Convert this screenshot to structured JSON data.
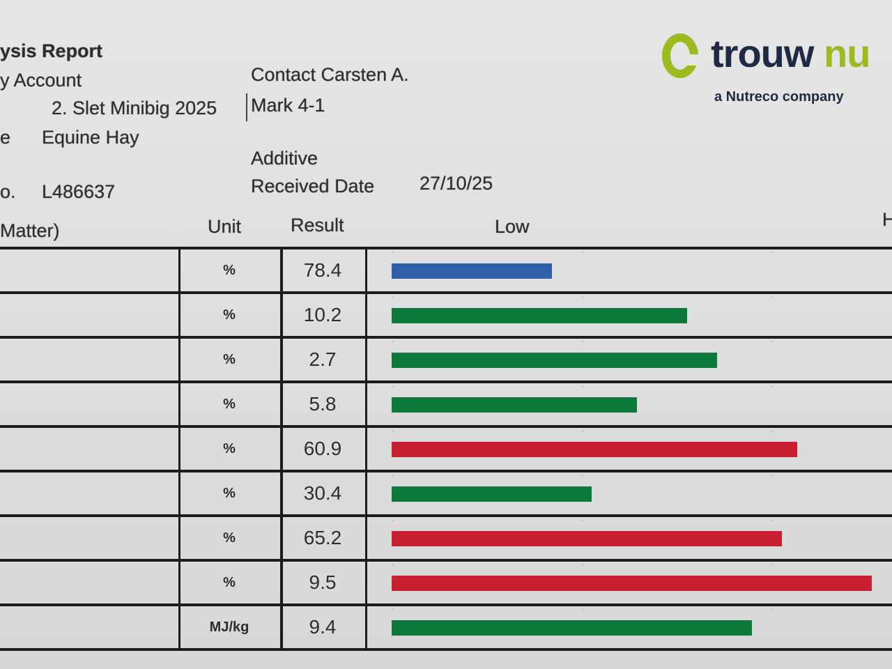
{
  "header": {
    "title_fragment": "ysis Report",
    "account_fragment": "y Account",
    "sample_name": "2. Slet Minibig 2025",
    "sample_name_cont": "Mark 4-1",
    "contact": "Contact Carsten A.",
    "type_label_fragment": "e",
    "type_value": "Equine Hay",
    "additive_label": "Additive",
    "lab_no_label_fragment": "o.",
    "lab_no": "L486637",
    "received_label": "Received Date",
    "received_date": "27/10/25"
  },
  "logo": {
    "brand": "trouw nu",
    "brand_part1": "trouw",
    "brand_part2": "nu",
    "tagline": "a Nutreco company",
    "color_ring": "#9bbb1f",
    "color_text": "#1f2a44"
  },
  "table": {
    "columns": {
      "name": "Matter)",
      "unit": "Unit",
      "result": "Result",
      "low": "Low",
      "high_fragment": "H"
    },
    "bar_colors": {
      "blue": "#2f5fa8",
      "green": "#0e7a3a",
      "red": "#c8202e"
    },
    "rows": [
      {
        "unit": "%",
        "result": "78.4",
        "level": 0.32,
        "color": "#2f5fa8"
      },
      {
        "unit": "%",
        "result": "10.2",
        "level": 0.59,
        "color": "#0e7a3a"
      },
      {
        "unit": "%",
        "result": "2.7",
        "level": 0.65,
        "color": "#0e7a3a"
      },
      {
        "unit": "%",
        "result": "5.8",
        "level": 0.49,
        "color": "#0e7a3a"
      },
      {
        "unit": "%",
        "result": "60.9",
        "level": 0.81,
        "color": "#c8202e"
      },
      {
        "unit": "%",
        "result": "30.4",
        "level": 0.4,
        "color": "#0e7a3a"
      },
      {
        "unit": "%",
        "result": "65.2",
        "level": 0.78,
        "color": "#c8202e"
      },
      {
        "unit": "%",
        "result": "9.5",
        "level": 0.96,
        "color": "#c8202e"
      },
      {
        "unit": "MJ/kg",
        "result": "9.4",
        "level": 0.72,
        "color": "#0e7a3a"
      }
    ]
  }
}
